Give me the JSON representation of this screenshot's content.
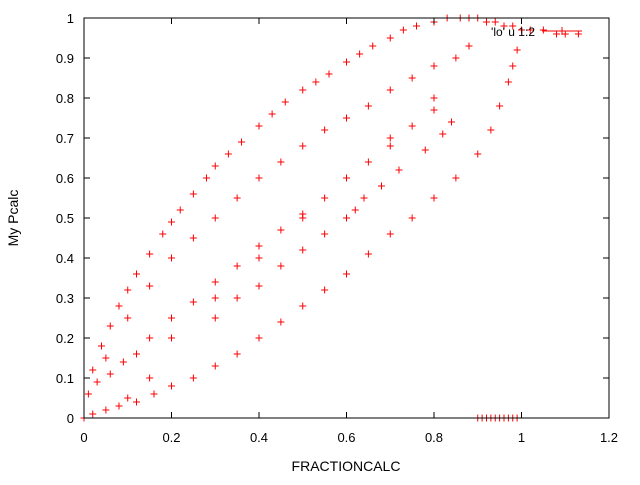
{
  "chart_data": {
    "type": "scatter",
    "title": "",
    "xlabel": "FRACTIONCALC",
    "ylabel": "My Pcalc",
    "xlim": [
      0,
      1.2
    ],
    "ylim": [
      0,
      1
    ],
    "x_ticks": [
      "0",
      "0.2",
      "0.4",
      "0.6",
      "0.8",
      "1",
      "1.2"
    ],
    "y_ticks": [
      "0",
      "0.1",
      "0.2",
      "0.3",
      "0.4",
      "0.5",
      "0.6",
      "0.7",
      "0.8",
      "0.9",
      "1"
    ],
    "legend": {
      "placement": "top-right",
      "entry": "'lo' u 1:2"
    },
    "grid": false,
    "marker": "plus",
    "color": "#ff0000",
    "series": [
      {
        "x": [
          0.0,
          0.02,
          0.04,
          0.06,
          0.08,
          0.1,
          0.12,
          0.15,
          0.18,
          0.2,
          0.22,
          0.25,
          0.28,
          0.3,
          0.33,
          0.36,
          0.4,
          0.43,
          0.46,
          0.5,
          0.53,
          0.56,
          0.6,
          0.63,
          0.66,
          0.7,
          0.73,
          0.76,
          0.8,
          0.83,
          0.86,
          0.88,
          0.9,
          0.92,
          0.94,
          0.96,
          0.98,
          1.0,
          1.02,
          1.05,
          1.08,
          1.1,
          1.13,
          0.02,
          0.05,
          0.08,
          0.12,
          0.16,
          0.2,
          0.25,
          0.3,
          0.35,
          0.4,
          0.45,
          0.5,
          0.55,
          0.6,
          0.65,
          0.7,
          0.75,
          0.8,
          0.85,
          0.9,
          0.93,
          0.95,
          0.97,
          0.98,
          0.99,
          0.05,
          0.1,
          0.15,
          0.2,
          0.25,
          0.3,
          0.35,
          0.4,
          0.45,
          0.5,
          0.55,
          0.6,
          0.65,
          0.7,
          0.75,
          0.8,
          0.85,
          0.88,
          0.1,
          0.15,
          0.2,
          0.3,
          0.4,
          0.5,
          0.6,
          0.7,
          0.8,
          0.01,
          0.03,
          0.06,
          0.09,
          0.12,
          0.15,
          0.2,
          0.25,
          0.3,
          0.35,
          0.4,
          0.45,
          0.5,
          0.55,
          0.6,
          0.65,
          0.7,
          0.75,
          0.8,
          0.9,
          0.91,
          0.92,
          0.93,
          0.94,
          0.95,
          0.96,
          0.97,
          0.98,
          0.99,
          0.3,
          0.35,
          0.4,
          0.45,
          0.5,
          0.55,
          0.6,
          0.62,
          0.64,
          0.68,
          0.72,
          0.78,
          0.82,
          0.84
        ],
        "y": [
          0.0,
          0.12,
          0.18,
          0.23,
          0.28,
          0.32,
          0.36,
          0.41,
          0.46,
          0.49,
          0.52,
          0.56,
          0.6,
          0.63,
          0.66,
          0.69,
          0.73,
          0.76,
          0.79,
          0.82,
          0.84,
          0.86,
          0.89,
          0.91,
          0.93,
          0.95,
          0.97,
          0.98,
          0.99,
          1.0,
          1.0,
          1.0,
          1.0,
          0.99,
          0.99,
          0.98,
          0.98,
          0.97,
          0.97,
          0.97,
          0.96,
          0.96,
          0.96,
          0.01,
          0.02,
          0.03,
          0.04,
          0.06,
          0.08,
          0.1,
          0.13,
          0.16,
          0.2,
          0.24,
          0.28,
          0.32,
          0.36,
          0.41,
          0.46,
          0.5,
          0.55,
          0.6,
          0.66,
          0.72,
          0.78,
          0.84,
          0.88,
          0.92,
          0.15,
          0.25,
          0.33,
          0.4,
          0.45,
          0.5,
          0.55,
          0.6,
          0.64,
          0.68,
          0.72,
          0.75,
          0.78,
          0.82,
          0.85,
          0.88,
          0.9,
          0.93,
          0.05,
          0.1,
          0.2,
          0.3,
          0.4,
          0.5,
          0.6,
          0.7,
          0.8,
          0.06,
          0.09,
          0.11,
          0.14,
          0.16,
          0.2,
          0.25,
          0.29,
          0.34,
          0.38,
          0.43,
          0.47,
          0.51,
          0.55,
          0.6,
          0.64,
          0.68,
          0.73,
          0.77,
          0.0,
          0.0,
          0.0,
          0.0,
          0.0,
          0.0,
          0.0,
          0.0,
          0.0,
          0.0,
          0.25,
          0.3,
          0.33,
          0.38,
          0.42,
          0.46,
          0.5,
          0.52,
          0.55,
          0.58,
          0.62,
          0.67,
          0.71,
          0.74
        ]
      }
    ]
  }
}
